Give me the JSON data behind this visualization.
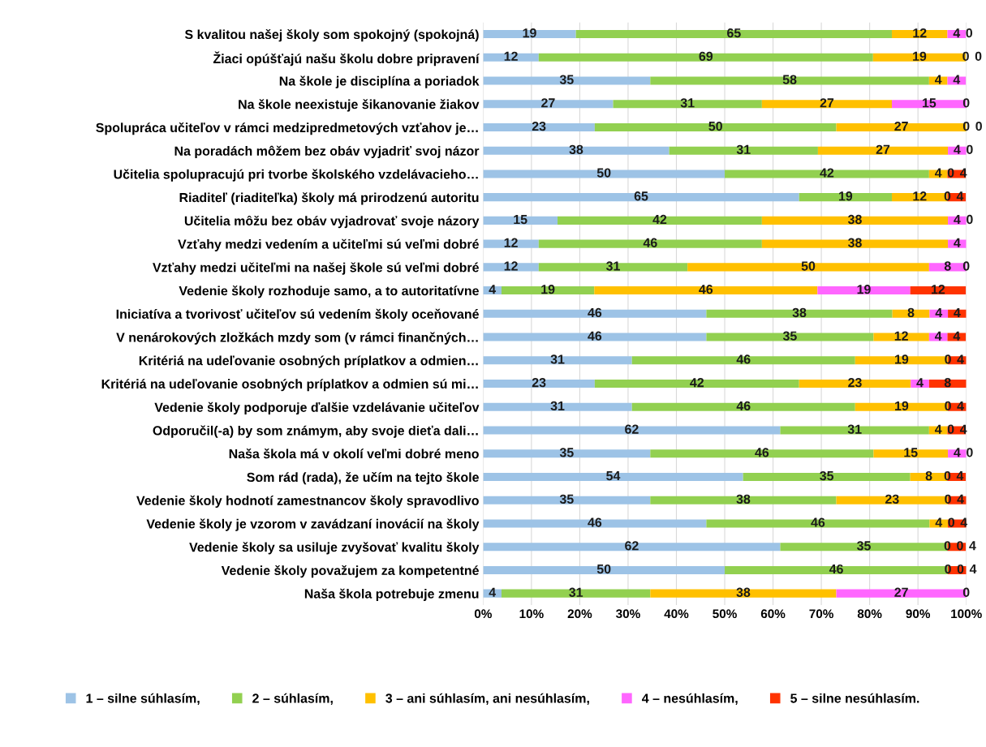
{
  "chart_data": {
    "type": "bar",
    "orientation": "horizontal",
    "stacked": true,
    "grid": "x",
    "legend": "bottom",
    "categories": [
      "S kvalitou našej školy som spokojný (spokojná)",
      "Žiaci opúšťajú našu školu dobre pripravení",
      "Na škole je disciplína a poriadok",
      "Na škole neexistuje šikanovanie žiakov",
      "Spolupráca učiteľov v rámci medzipredmetových vzťahov je…",
      "Na poradách môžem bez obáv vyjadriť svoj názor",
      "Učitelia spolupracujú pri tvorbe školského vzdelávacieho…",
      "Riaditeľ (riaditeľka) školy má prirodzenú autoritu",
      "Učitelia môžu bez obáv vyjadrovať svoje názory",
      "Vzťahy medzi vedením a učiteľmi sú veľmi dobré",
      "Vzťahy medzi učiteľmi na našej škole sú veľmi dobré",
      "Vedenie školy rozhoduje samo, a to autoritatívne",
      "Iniciatíva a tvorivosť učiteľov sú vedením školy oceňované",
      "V nenárokových zložkách mzdy som (v rámci finančných…",
      "Kritériá na udeľovanie osobných príplatkov a odmien…",
      "Kritériá na udeľovanie osobných príplatkov a odmien sú mi…",
      "Vedenie školy podporuje ďalšie vzdelávanie učiteľov",
      "Odporučil(-a) by som známym, aby svoje dieťa dali…",
      "Naša škola má v okolí veľmi dobré meno",
      "Som rád (rada), že učím na tejto škole",
      "Vedenie školy hodnotí zamestnancov školy spravodlivo",
      "Vedenie školy je vzorom v zavádzaní inovácií na školy",
      "Vedenie školy sa usiluje zvyšovať kvalitu školy",
      "Vedenie školy považujem za kompetentné",
      "Naša škola potrebuje zmenu"
    ],
    "xlim": [
      0,
      100
    ],
    "xticks": [
      {
        "value": 0,
        "label": "0%"
      },
      {
        "value": 10,
        "label": "10%"
      },
      {
        "value": 20,
        "label": "20%"
      },
      {
        "value": 30,
        "label": "30%"
      },
      {
        "value": 40,
        "label": "40%"
      },
      {
        "value": 50,
        "label": "50%"
      },
      {
        "value": 60,
        "label": "60%"
      },
      {
        "value": 70,
        "label": "70%"
      },
      {
        "value": 80,
        "label": "80%"
      },
      {
        "value": 90,
        "label": "90%"
      },
      {
        "value": 100,
        "label": "100%"
      }
    ],
    "series": [
      {
        "name": "1 – silne súhlasím,",
        "color": "#9dc3e6",
        "values": [
          19.2,
          11.5,
          34.6,
          26.9,
          23.1,
          38.5,
          50,
          65.4,
          15.4,
          11.5,
          11.5,
          3.8,
          46.2,
          46.2,
          30.8,
          23.1,
          30.8,
          61.5,
          34.6,
          53.8,
          34.6,
          46.2,
          61.5,
          50,
          3.8
        ],
        "value_labels": [
          "19",
          "12",
          "35",
          "27",
          "23",
          "38",
          "50",
          "65",
          "15",
          "12",
          "12",
          "4",
          "46",
          "46",
          "31",
          "23",
          "31",
          "62",
          "35",
          "54",
          "35",
          "46",
          "62",
          "50",
          "4"
        ]
      },
      {
        "name": "2 – súhlasím,",
        "color": "#92d050",
        "values": [
          65.4,
          69.2,
          57.7,
          30.8,
          50,
          30.8,
          42.3,
          19.2,
          42.3,
          46.2,
          30.8,
          19.2,
          38.5,
          34.6,
          46.2,
          42.3,
          46.2,
          30.8,
          46.2,
          34.6,
          38.5,
          46.2,
          34.6,
          46.2,
          30.8
        ],
        "value_labels": [
          "65",
          "69",
          "58",
          "31",
          "50",
          "31",
          "42",
          "19",
          "42",
          "46",
          "31",
          "19",
          "38",
          "35",
          "46",
          "42",
          "46",
          "31",
          "46",
          "35",
          "38",
          "46",
          "35",
          "46",
          "31"
        ]
      },
      {
        "name": "3 – ani súhlasím, ani nesúhlasím,",
        "color": "#ffc000",
        "values": [
          11.5,
          19.2,
          3.8,
          26.9,
          26.9,
          26.9,
          3.8,
          11.5,
          38.5,
          38.5,
          50,
          46.2,
          7.7,
          11.5,
          19.2,
          23.1,
          19.2,
          3.8,
          15.4,
          7.7,
          23.1,
          3.8,
          0,
          0,
          38.5
        ],
        "value_labels": [
          "12",
          "19",
          "4",
          "27",
          "27",
          "27",
          "4",
          "12",
          "38",
          "38",
          "50",
          "46",
          "8",
          "12",
          "19",
          "23",
          "19",
          "4",
          "15",
          "8",
          "23",
          "4",
          "0",
          "0",
          "38"
        ]
      },
      {
        "name": "4 – nesúhlasím,",
        "color": "#ff66ff",
        "values": [
          3.8,
          0,
          3.8,
          15.4,
          0,
          3.8,
          0,
          0,
          3.8,
          3.8,
          7.7,
          19.2,
          3.8,
          3.8,
          0,
          3.8,
          0,
          0,
          3.8,
          0,
          0,
          0,
          0,
          0,
          26.9
        ],
        "value_labels": [
          "4",
          "0",
          "4",
          "15",
          "0",
          "4",
          "0",
          "0",
          "4",
          "4",
          "8",
          "19",
          "4",
          "4",
          "0",
          "4",
          "0",
          "0",
          "4",
          "0",
          "0",
          "0",
          "0",
          "0",
          "27"
        ]
      },
      {
        "name": "5 – silne nesúhlasím.",
        "color": "#ff3300",
        "values": [
          0,
          0,
          0,
          0,
          0,
          0,
          3.8,
          3.8,
          0,
          0,
          0,
          11.5,
          3.8,
          3.8,
          3.8,
          7.7,
          3.8,
          3.8,
          0,
          3.8,
          3.8,
          3.8,
          3.8,
          3.8,
          0
        ],
        "value_labels": [
          "0",
          "0",
          null,
          "0",
          "0",
          "0",
          "4",
          "4",
          "0",
          null,
          "0",
          "12",
          "4",
          "4",
          "4",
          "8",
          "4",
          "4",
          "0",
          "4",
          "4",
          "4",
          "4",
          "4",
          "0"
        ]
      }
    ]
  }
}
